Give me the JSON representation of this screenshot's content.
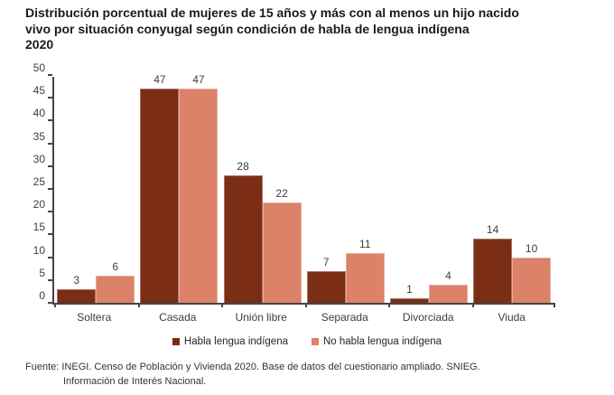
{
  "title": {
    "lines": [
      "Distribución porcentual de mujeres de 15 años y más con al menos un hijo nacido",
      "vivo por situación conyugal según condición de habla de lengua indígena",
      "2020"
    ]
  },
  "chart_data": {
    "type": "bar",
    "title": "Distribución porcentual de mujeres de 15 años y más con al menos un hijo nacido vivo por situación conyugal según condición de habla de lengua indígena 2020",
    "categories": [
      "Soltera",
      "Casada",
      "Unión libre",
      "Separada",
      "Divorciada",
      "Viuda"
    ],
    "series": [
      {
        "name": "Habla lengua indígena",
        "color": "#7B2D16",
        "values": [
          3,
          47,
          28,
          7,
          1,
          14
        ]
      },
      {
        "name": "No habla lengua indígena",
        "color": "#DB8268",
        "values": [
          6,
          47,
          22,
          11,
          4,
          10
        ]
      }
    ],
    "ylim": [
      0,
      50
    ],
    "yticks": [
      0,
      5,
      10,
      15,
      20,
      25,
      30,
      35,
      40,
      45,
      50
    ],
    "xlabel": "",
    "ylabel": "",
    "grid": false,
    "legend_position": "bottom",
    "value_labels": true,
    "axis_color": "#454545",
    "label_color": "#3d3d3d"
  },
  "footer": {
    "line1": "Fuente: INEGI. Censo de Población y Vivienda 2020. Base de datos del cuestionario ampliado. SNIEG.",
    "line2": "Información de Interés Nacional."
  }
}
